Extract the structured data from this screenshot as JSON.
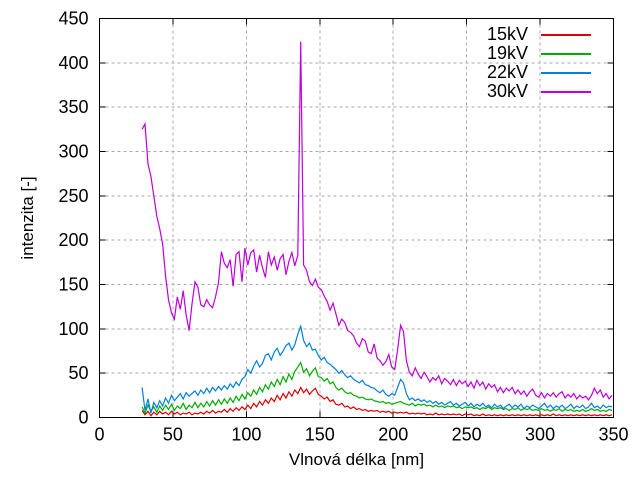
{
  "figure": {
    "background": "#ffffff",
    "text_color": "#000000",
    "grid_color": "#aaaaaa",
    "frame_color": "#000000"
  },
  "chart_data": {
    "type": "line",
    "title": "",
    "xlabel": "Vlnová délka [nm]",
    "ylabel": "intenzita [-]",
    "xlim": [
      0,
      350
    ],
    "ylim": [
      0,
      450
    ],
    "x_ticks": [
      0,
      50,
      100,
      150,
      200,
      250,
      300,
      350
    ],
    "y_ticks": [
      0,
      50,
      100,
      150,
      200,
      250,
      300,
      350,
      400,
      450
    ],
    "grid": true,
    "legend_position": "top-right-inside",
    "x_start": 29,
    "x_step": 2,
    "series": [
      {
        "name": "15kV",
        "color": "#dd0000",
        "values": [
          8,
          3,
          7,
          2,
          6,
          3,
          7,
          4,
          6,
          3,
          7,
          4,
          6,
          3,
          5,
          4,
          6,
          3,
          5,
          4,
          6,
          4,
          7,
          5,
          8,
          5,
          7,
          6,
          9,
          6,
          10,
          7,
          11,
          8,
          12,
          9,
          14,
          10,
          16,
          12,
          18,
          14,
          20,
          16,
          22,
          18,
          25,
          20,
          27,
          22,
          29,
          24,
          31,
          27,
          34,
          28,
          32,
          26,
          30,
          33,
          26,
          24,
          21,
          23,
          18,
          20,
          15,
          14,
          16,
          12,
          13,
          10,
          12,
          9,
          10,
          8,
          9,
          7,
          8,
          7,
          8,
          6,
          7,
          6,
          7,
          5,
          6,
          5,
          6,
          5,
          6,
          4,
          5,
          4,
          5,
          4,
          5,
          3,
          4,
          3,
          5,
          3,
          4,
          3,
          4,
          3,
          4,
          3,
          4,
          2,
          4,
          3,
          4,
          2,
          3,
          2,
          4,
          2,
          3,
          2,
          3,
          2,
          3,
          2,
          3,
          2,
          3,
          2,
          3,
          2,
          3,
          2,
          3,
          2,
          3,
          2,
          3,
          2,
          3,
          2,
          4,
          2,
          3,
          2,
          3,
          2,
          3,
          2,
          3,
          2,
          3,
          2,
          3,
          2,
          3,
          2,
          3,
          2,
          3,
          2,
          3
        ]
      },
      {
        "name": "19kV",
        "color": "#00ad00",
        "values": [
          12,
          5,
          14,
          7,
          12,
          6,
          13,
          8,
          14,
          9,
          15,
          8,
          13,
          10,
          16,
          9,
          14,
          11,
          17,
          11,
          16,
          12,
          18,
          13,
          19,
          14,
          20,
          15,
          21,
          16,
          22,
          17,
          24,
          19,
          26,
          21,
          28,
          24,
          31,
          26,
          34,
          29,
          37,
          32,
          40,
          35,
          43,
          37,
          46,
          40,
          49,
          43,
          52,
          57,
          62,
          51,
          55,
          47,
          52,
          56,
          46,
          45,
          41,
          44,
          38,
          40,
          34,
          31,
          33,
          29,
          27,
          28,
          25,
          24,
          22,
          23,
          21,
          20,
          21,
          19,
          18,
          17,
          18,
          16,
          17,
          15,
          16,
          17,
          18,
          16,
          15,
          14,
          16,
          13,
          15,
          14,
          15,
          13,
          14,
          12,
          14,
          12,
          13,
          11,
          13,
          12,
          13,
          11,
          12,
          10,
          12,
          11,
          12,
          10,
          11,
          9,
          11,
          10,
          12,
          9,
          11,
          10,
          11,
          9,
          10,
          8,
          10,
          9,
          11,
          8,
          10,
          9,
          10,
          8,
          9,
          8,
          10,
          8,
          9,
          7,
          9,
          8,
          10,
          7,
          9,
          8,
          9,
          7,
          8,
          7,
          9,
          7,
          8,
          10,
          8,
          9,
          7,
          8,
          7,
          9,
          8
        ]
      },
      {
        "name": "22kV",
        "color": "#0080dd",
        "values": [
          34,
          8,
          21,
          5,
          17,
          11,
          19,
          13,
          22,
          16,
          25,
          19,
          23,
          27,
          21,
          28,
          24,
          27,
          30,
          25,
          31,
          27,
          33,
          28,
          34,
          30,
          35,
          31,
          36,
          32,
          38,
          34,
          40,
          36,
          43,
          46,
          54,
          50,
          58,
          64,
          57,
          61,
          70,
          72,
          65,
          74,
          78,
          70,
          75,
          81,
          84,
          76,
          82,
          94,
          103,
          87,
          80,
          84,
          76,
          77,
          70,
          65,
          68,
          62,
          60,
          57,
          54,
          50,
          53,
          48,
          45,
          47,
          43,
          41,
          39,
          42,
          37,
          36,
          34,
          33,
          30,
          28,
          31,
          26,
          24,
          27,
          25,
          34,
          43,
          39,
          27,
          20,
          22,
          19,
          21,
          18,
          20,
          17,
          19,
          16,
          18,
          15,
          17,
          14,
          16,
          18,
          14,
          16,
          13,
          15,
          17,
          13,
          16,
          12,
          15,
          13,
          16,
          12,
          14,
          11,
          15,
          12,
          14,
          10,
          13,
          15,
          11,
          14,
          12,
          15,
          10,
          13,
          11,
          14,
          12,
          10,
          13,
          16,
          11,
          14,
          10,
          13,
          11,
          14,
          10,
          12,
          15,
          10,
          13,
          11,
          14,
          10,
          12,
          16,
          11,
          13,
          10,
          14,
          11,
          13,
          12
        ]
      },
      {
        "name": "30kV",
        "color": "#bd00dd",
        "values": [
          325,
          331,
          286,
          272,
          250,
          227,
          213,
          196,
          159,
          133,
          118,
          111,
          136,
          122,
          143,
          116,
          98,
          128,
          153,
          147,
          127,
          125,
          133,
          127,
          124,
          136,
          152,
          187,
          174,
          169,
          178,
          148,
          184,
          187,
          153,
          191,
          172,
          186,
          189,
          164,
          183,
          169,
          158,
          187,
          172,
          181,
          166,
          179,
          184,
          161,
          176,
          186,
          171,
          183,
          424,
          172,
          166,
          153,
          149,
          156,
          147,
          144,
          137,
          131,
          121,
          129,
          117,
          104,
          111,
          107,
          98,
          96,
          92,
          84,
          80,
          89,
          86,
          74,
          72,
          83,
          67,
          64,
          59,
          63,
          71,
          57,
          54,
          76,
          104,
          97,
          64,
          51,
          47,
          56,
          49,
          44,
          51,
          46,
          40,
          45,
          42,
          47,
          38,
          44,
          41,
          37,
          43,
          36,
          42,
          38,
          41,
          35,
          40,
          33,
          42,
          36,
          40,
          32,
          38,
          34,
          37,
          29,
          34,
          28,
          33,
          30,
          34,
          27,
          31,
          26,
          30,
          24,
          29,
          32,
          25,
          23,
          28,
          22,
          27,
          24,
          28,
          23,
          27,
          29,
          22,
          26,
          23,
          27,
          21,
          25,
          22,
          24,
          20,
          25,
          33,
          27,
          31,
          23,
          27,
          21,
          25
        ]
      }
    ]
  }
}
